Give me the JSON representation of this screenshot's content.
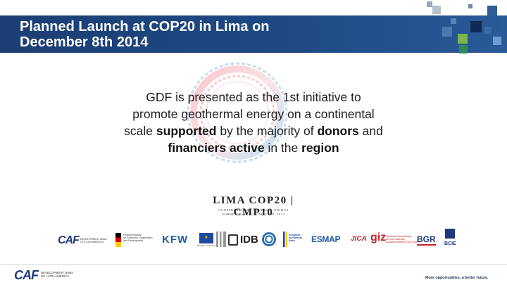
{
  "slide": {
    "title_line1": "Planned Launch at COP20 in Lima on",
    "title_line2": "December 8th 2014",
    "body": {
      "p1": "GDF is presented as the 1st initiative to",
      "p2": "promote geothermal energy on a continental",
      "p3a": "scale ",
      "p3b": "supported",
      "p3c": " by the majority of ",
      "p3d": "donors",
      "p3e": " and",
      "p4a": "financiers active",
      "p4b": " in the ",
      "p4c": "region"
    }
  },
  "event": {
    "name": "LIMA COP20 | CMP10",
    "subtitle1": "CONFERENCIA DE NACIONES UNIDAS",
    "subtitle2": "SOBRE CAMBIO CLIMÁTICO. 2014"
  },
  "partners": {
    "caf": "CAF",
    "caf_sub1": "DEVELOPMENT BANK",
    "caf_sub2": "OF LATIN AMERICA",
    "bmz1": "Federal Ministry",
    "bmz2": "for Economic Cooperation",
    "bmz3": "and Development",
    "kfw": "KFW",
    "eu": "European Commission",
    "idb": "IDB",
    "eib1": "European",
    "eib2": "Investment",
    "eib3": "Bank",
    "esmap": "ESMAP",
    "jica": "JICA",
    "giz": "giz",
    "giz_sub1": "Deutsche Gesellschaft",
    "giz_sub2": "für Internationale",
    "giz_sub3": "Zusammenarbeit (GIZ) GmbH",
    "bgr": "BGR",
    "bcie": "BCIE"
  },
  "footer": {
    "caf": "CAF",
    "caf_sub1": "DEVELOPMENT BANK",
    "caf_sub2": "OF LATIN AMERICA",
    "tagline": "More opportunities, a better future."
  },
  "colors": {
    "title_bar": "#1f4a86",
    "caf_blue": "#1d3a7a",
    "caf_green": "#7ab648",
    "ring_red": "#e8394a",
    "ring_blue": "#2e8fd8"
  }
}
